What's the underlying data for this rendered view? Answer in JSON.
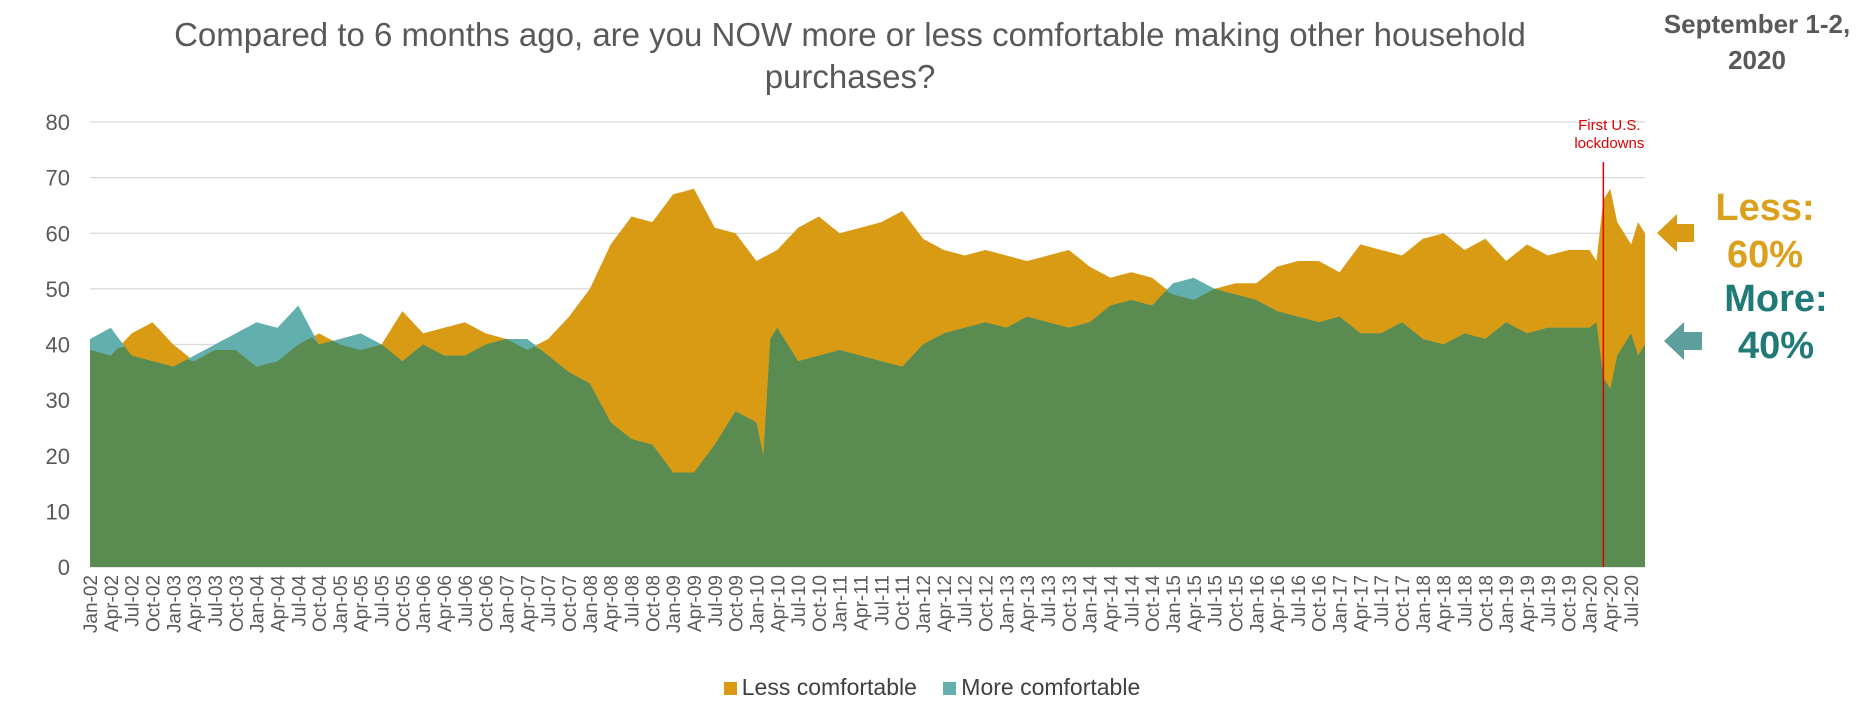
{
  "title": "Compared to 6 months ago, are you NOW more or less comfortable making other household purchases?",
  "date_label": "September 1-2, 2020",
  "annotation": "First U.S. lockdowns",
  "annotation_at": "Mar-20",
  "callouts": {
    "less": {
      "label": "Less:",
      "value": "60%"
    },
    "more": {
      "label": "More:",
      "value": "40%"
    }
  },
  "colors": {
    "less": "#d99a14",
    "more": "#62afae",
    "overlap": "#5a8b51",
    "annotation_line": "#e00000",
    "less_arrow": "#d99a14",
    "more_arrow": "#5e9e9c"
  },
  "chart_data": {
    "type": "area",
    "title": "Compared to 6 months ago, are you NOW more or less comfortable making other household purchases?",
    "xlabel": "",
    "ylabel": "",
    "ylim": [
      0,
      80
    ],
    "yticks": [
      "0",
      "10",
      "20",
      "30",
      "40",
      "50",
      "60",
      "70",
      "80"
    ],
    "x_start": "Jan-02",
    "x_end": "Sep-20",
    "x_tick_labels": [
      "Jan-02",
      "Apr-02",
      "Jul-02",
      "Oct-02",
      "Jan-03",
      "Apr-03",
      "Jul-03",
      "Oct-03",
      "Jan-04",
      "Apr-04",
      "Jul-04",
      "Oct-04",
      "Jan-05",
      "Apr-05",
      "Jul-05",
      "Oct-05",
      "Jan-06",
      "Apr-06",
      "Jul-06",
      "Oct-06",
      "Jan-07",
      "Apr-07",
      "Jul-07",
      "Oct-07",
      "Jan-08",
      "Apr-08",
      "Jul-08",
      "Oct-08",
      "Jan-09",
      "Apr-09",
      "Jul-09",
      "Oct-09",
      "Jan-10",
      "Apr-10",
      "Jul-10",
      "Oct-10",
      "Jan-11",
      "Apr-11",
      "Jul-11",
      "Oct-11",
      "Jan-12",
      "Apr-12",
      "Jul-12",
      "Oct-12",
      "Jan-13",
      "Apr-13",
      "Jul-13",
      "Oct-13",
      "Jan-14",
      "Apr-14",
      "Jul-14",
      "Oct-14",
      "Jan-15",
      "Apr-15",
      "Jul-15",
      "Oct-15",
      "Jan-16",
      "Apr-16",
      "Jul-16",
      "Oct-16",
      "Jan-17",
      "Apr-17",
      "Jul-17",
      "Oct-17",
      "Jan-18",
      "Apr-18",
      "Jul-18",
      "Oct-18",
      "Jan-19",
      "Apr-19",
      "Jul-19",
      "Oct-19",
      "Jan-20",
      "Apr-20",
      "Jul-20"
    ],
    "legend": [
      "Less comfortable",
      "More comfortable"
    ],
    "series": [
      {
        "name": "Less comfortable",
        "points": [
          [
            "Jan-02",
            39
          ],
          [
            "Apr-02",
            38
          ],
          [
            "Jul-02",
            42
          ],
          [
            "Oct-02",
            44
          ],
          [
            "Jan-03",
            40
          ],
          [
            "Apr-03",
            37
          ],
          [
            "Jul-03",
            39
          ],
          [
            "Oct-03",
            39
          ],
          [
            "Jan-04",
            36
          ],
          [
            "Apr-04",
            37
          ],
          [
            "Jul-04",
            40
          ],
          [
            "Oct-04",
            42
          ],
          [
            "Jan-05",
            40
          ],
          [
            "Apr-05",
            39
          ],
          [
            "Jul-05",
            40
          ],
          [
            "Oct-05",
            46
          ],
          [
            "Jan-06",
            42
          ],
          [
            "Apr-06",
            43
          ],
          [
            "Jul-06",
            44
          ],
          [
            "Oct-06",
            42
          ],
          [
            "Jan-07",
            41
          ],
          [
            "Apr-07",
            39
          ],
          [
            "Jul-07",
            41
          ],
          [
            "Oct-07",
            45
          ],
          [
            "Jan-08",
            50
          ],
          [
            "Apr-08",
            58
          ],
          [
            "Jul-08",
            63
          ],
          [
            "Oct-08",
            62
          ],
          [
            "Jan-09",
            67
          ],
          [
            "Apr-09",
            68
          ],
          [
            "Jul-09",
            61
          ],
          [
            "Oct-09",
            60
          ],
          [
            "Jan-10",
            55
          ],
          [
            "Apr-10",
            57
          ],
          [
            "Jul-10",
            61
          ],
          [
            "Oct-10",
            63
          ],
          [
            "Jan-11",
            60
          ],
          [
            "Apr-11",
            61
          ],
          [
            "Jul-11",
            62
          ],
          [
            "Oct-11",
            64
          ],
          [
            "Jan-12",
            59
          ],
          [
            "Apr-12",
            57
          ],
          [
            "Jul-12",
            56
          ],
          [
            "Oct-12",
            57
          ],
          [
            "Jan-13",
            56
          ],
          [
            "Apr-13",
            55
          ],
          [
            "Jul-13",
            56
          ],
          [
            "Oct-13",
            57
          ],
          [
            "Jan-14",
            54
          ],
          [
            "Apr-14",
            52
          ],
          [
            "Jul-14",
            53
          ],
          [
            "Oct-14",
            52
          ],
          [
            "Jan-15",
            49
          ],
          [
            "Apr-15",
            48
          ],
          [
            "Jul-15",
            50
          ],
          [
            "Oct-15",
            51
          ],
          [
            "Jan-16",
            51
          ],
          [
            "Apr-16",
            54
          ],
          [
            "Jul-16",
            55
          ],
          [
            "Oct-16",
            55
          ],
          [
            "Jan-17",
            53
          ],
          [
            "Apr-17",
            58
          ],
          [
            "Jul-17",
            57
          ],
          [
            "Oct-17",
            56
          ],
          [
            "Jan-18",
            59
          ],
          [
            "Apr-18",
            60
          ],
          [
            "Jul-18",
            57
          ],
          [
            "Oct-18",
            59
          ],
          [
            "Jan-19",
            55
          ],
          [
            "Apr-19",
            58
          ],
          [
            "Jul-19",
            56
          ],
          [
            "Oct-19",
            57
          ],
          [
            "Jan-20",
            57
          ],
          [
            "Feb-20",
            55
          ],
          [
            "Mar-20",
            66
          ],
          [
            "Apr-20",
            68
          ],
          [
            "May-20",
            62
          ],
          [
            "Jun-20",
            60
          ],
          [
            "Jul-20",
            58
          ],
          [
            "Aug-20",
            62
          ],
          [
            "Sep-20",
            60
          ]
        ]
      },
      {
        "name": "More comfortable",
        "points": [
          [
            "Jan-02",
            41
          ],
          [
            "Apr-02",
            43
          ],
          [
            "Jul-02",
            38
          ],
          [
            "Oct-02",
            37
          ],
          [
            "Jan-03",
            36
          ],
          [
            "Apr-03",
            38
          ],
          [
            "Jul-03",
            40
          ],
          [
            "Oct-03",
            42
          ],
          [
            "Jan-04",
            44
          ],
          [
            "Apr-04",
            43
          ],
          [
            "Jul-04",
            47
          ],
          [
            "Oct-04",
            40
          ],
          [
            "Jan-05",
            41
          ],
          [
            "Apr-05",
            42
          ],
          [
            "Jul-05",
            40
          ],
          [
            "Oct-05",
            37
          ],
          [
            "Jan-06",
            40
          ],
          [
            "Apr-06",
            38
          ],
          [
            "Jul-06",
            38
          ],
          [
            "Oct-06",
            40
          ],
          [
            "Jan-07",
            41
          ],
          [
            "Apr-07",
            41
          ],
          [
            "Jul-07",
            38
          ],
          [
            "Oct-07",
            35
          ],
          [
            "Jan-08",
            33
          ],
          [
            "Apr-08",
            26
          ],
          [
            "Jul-08",
            23
          ],
          [
            "Oct-08",
            22
          ],
          [
            "Jan-09",
            17
          ],
          [
            "Apr-09",
            17
          ],
          [
            "Jul-09",
            22
          ],
          [
            "Oct-09",
            28
          ],
          [
            "Jan-10",
            26
          ],
          [
            "Feb-10",
            20
          ],
          [
            "Mar-10",
            41
          ],
          [
            "Apr-10",
            43
          ],
          [
            "Jul-10",
            37
          ],
          [
            "Oct-10",
            38
          ],
          [
            "Jan-11",
            39
          ],
          [
            "Apr-11",
            38
          ],
          [
            "Jul-11",
            37
          ],
          [
            "Oct-11",
            36
          ],
          [
            "Jan-12",
            40
          ],
          [
            "Apr-12",
            42
          ],
          [
            "Jul-12",
            43
          ],
          [
            "Oct-12",
            44
          ],
          [
            "Jan-13",
            43
          ],
          [
            "Apr-13",
            45
          ],
          [
            "Jul-13",
            44
          ],
          [
            "Oct-13",
            43
          ],
          [
            "Jan-14",
            44
          ],
          [
            "Apr-14",
            47
          ],
          [
            "Jul-14",
            48
          ],
          [
            "Oct-14",
            47
          ],
          [
            "Jan-15",
            51
          ],
          [
            "Apr-15",
            52
          ],
          [
            "Jul-15",
            50
          ],
          [
            "Oct-15",
            49
          ],
          [
            "Jan-16",
            48
          ],
          [
            "Apr-16",
            46
          ],
          [
            "Jul-16",
            45
          ],
          [
            "Oct-16",
            44
          ],
          [
            "Jan-17",
            45
          ],
          [
            "Apr-17",
            42
          ],
          [
            "Jul-17",
            42
          ],
          [
            "Oct-17",
            44
          ],
          [
            "Jan-18",
            41
          ],
          [
            "Apr-18",
            40
          ],
          [
            "Jul-18",
            42
          ],
          [
            "Oct-18",
            41
          ],
          [
            "Jan-19",
            44
          ],
          [
            "Apr-19",
            42
          ],
          [
            "Jul-19",
            43
          ],
          [
            "Oct-19",
            43
          ],
          [
            "Jan-20",
            43
          ],
          [
            "Feb-20",
            44
          ],
          [
            "Mar-20",
            34
          ],
          [
            "Apr-20",
            32
          ],
          [
            "May-20",
            38
          ],
          [
            "Jun-20",
            40
          ],
          [
            "Jul-20",
            42
          ],
          [
            "Aug-20",
            38
          ],
          [
            "Sep-20",
            40
          ]
        ]
      }
    ]
  }
}
